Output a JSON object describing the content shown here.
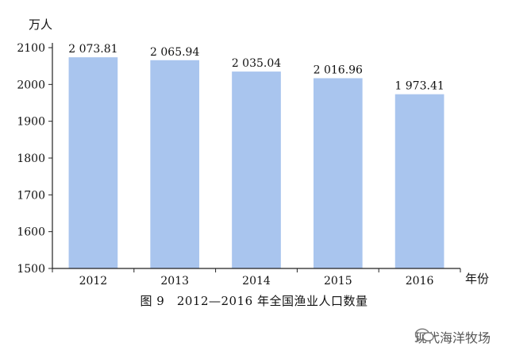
{
  "chart_data": {
    "type": "bar",
    "categories": [
      "2012",
      "2013",
      "2014",
      "2015",
      "2016"
    ],
    "values": [
      2073.81,
      2065.94,
      2035.04,
      2016.96,
      1973.41
    ],
    "data_labels": [
      "2 073.81",
      "2 065.94",
      "2 035.04",
      "2 016.96",
      "1 973.41"
    ],
    "ylabel": "万人",
    "xlabel": "年份",
    "ylim": [
      1500,
      2100
    ],
    "yticks": [
      1500,
      1600,
      1700,
      1800,
      1900,
      2000,
      2100
    ],
    "bar_color": "#a9c5ee",
    "grid": false,
    "caption": "图 9　2012—2016 年全国渔业人口数量"
  },
  "watermark": {
    "text": "现代海洋牧场",
    "icon": "wechat-icon"
  }
}
